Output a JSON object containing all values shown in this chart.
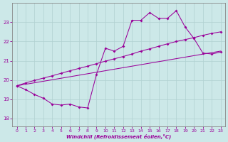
{
  "xlabel": "Windchill (Refroidissement éolien,°C)",
  "background_color": "#cce8e8",
  "line_color": "#990099",
  "xlim": [
    -0.5,
    23.5
  ],
  "ylim": [
    17.6,
    24.0
  ],
  "yticks": [
    18,
    19,
    20,
    21,
    22,
    23
  ],
  "xticks": [
    0,
    1,
    2,
    3,
    4,
    5,
    6,
    7,
    8,
    9,
    10,
    11,
    12,
    13,
    14,
    15,
    16,
    17,
    18,
    19,
    20,
    21,
    22,
    23
  ],
  "line1_x": [
    0,
    1,
    2,
    3,
    4,
    5,
    6,
    7,
    8,
    9,
    10,
    11,
    12,
    13,
    14,
    15,
    16,
    17,
    18,
    19,
    20,
    21,
    22,
    23
  ],
  "line1_y": [
    19.7,
    19.5,
    19.25,
    19.05,
    18.75,
    18.7,
    18.75,
    18.6,
    18.55,
    20.3,
    21.65,
    21.5,
    21.75,
    23.1,
    23.1,
    23.5,
    23.2,
    23.2,
    23.6,
    22.75,
    22.15,
    21.4,
    21.35,
    21.45
  ],
  "line2_x": [
    0,
    1,
    2,
    3,
    4,
    5,
    6,
    7,
    8,
    9,
    10,
    11,
    12,
    13,
    14,
    15,
    16,
    17,
    18,
    19,
    20,
    21,
    22,
    23
  ],
  "line2_y": [
    19.7,
    19.85,
    19.98,
    20.1,
    20.22,
    20.35,
    20.48,
    20.6,
    20.72,
    20.85,
    20.98,
    21.1,
    21.22,
    21.35,
    21.5,
    21.62,
    21.75,
    21.88,
    22.0,
    22.1,
    22.2,
    22.32,
    22.42,
    22.5
  ],
  "line3_x": [
    0,
    23
  ],
  "line3_y": [
    19.7,
    21.5
  ]
}
